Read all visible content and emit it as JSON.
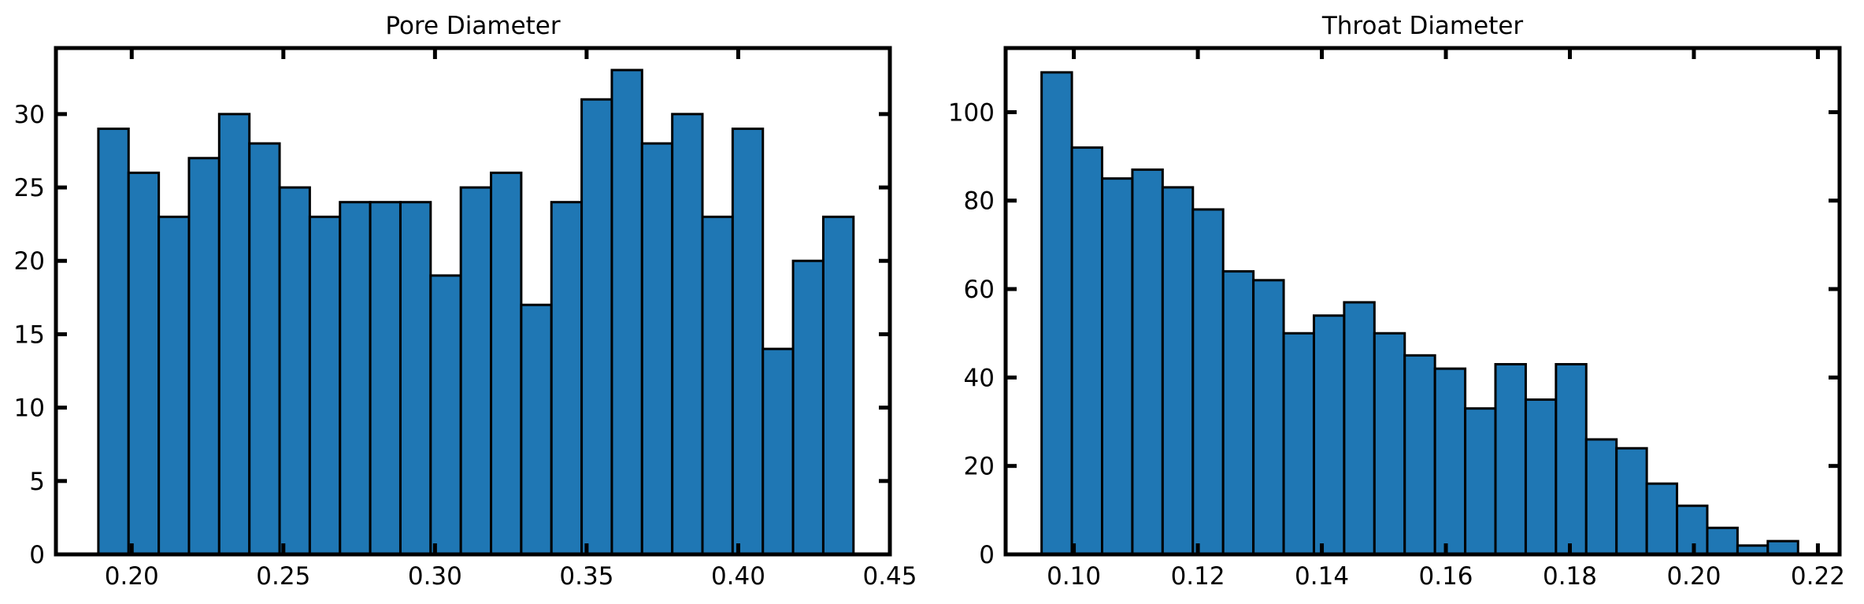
{
  "chart_data": [
    {
      "type": "bar",
      "title": "Pore Diameter",
      "bar_color": "#1f77b4",
      "edge_color": "#000000",
      "xlim": [
        0.175,
        0.45
      ],
      "ylim": [
        0,
        34.5
      ],
      "xticks": [
        "0.20",
        "0.25",
        "0.30",
        "0.35",
        "0.40",
        "0.45"
      ],
      "yticks": [
        "0",
        "5",
        "10",
        "15",
        "20",
        "25",
        "30"
      ],
      "bin_start": 0.189,
      "bin_width": 0.00996,
      "values": [
        29,
        26,
        23,
        27,
        30,
        28,
        25,
        23,
        24,
        24,
        24,
        19,
        25,
        26,
        17,
        24,
        31,
        33,
        28,
        30,
        23,
        29,
        14,
        20,
        23
      ]
    },
    {
      "type": "bar",
      "title": "Throat Diameter",
      "bar_color": "#1f77b4",
      "edge_color": "#000000",
      "xlim": [
        0.089,
        0.2235
      ],
      "ylim": [
        0,
        114.5
      ],
      "xticks": [
        "0.10",
        "0.12",
        "0.14",
        "0.16",
        "0.18",
        "0.20",
        "0.22"
      ],
      "yticks": [
        "0",
        "20",
        "40",
        "60",
        "80",
        "100"
      ],
      "bin_start": 0.0948,
      "bin_width": 0.00488,
      "values": [
        109,
        92,
        85,
        87,
        83,
        78,
        64,
        62,
        50,
        54,
        57,
        50,
        45,
        42,
        33,
        43,
        35,
        43,
        26,
        24,
        16,
        11,
        6,
        2,
        3
      ]
    }
  ]
}
